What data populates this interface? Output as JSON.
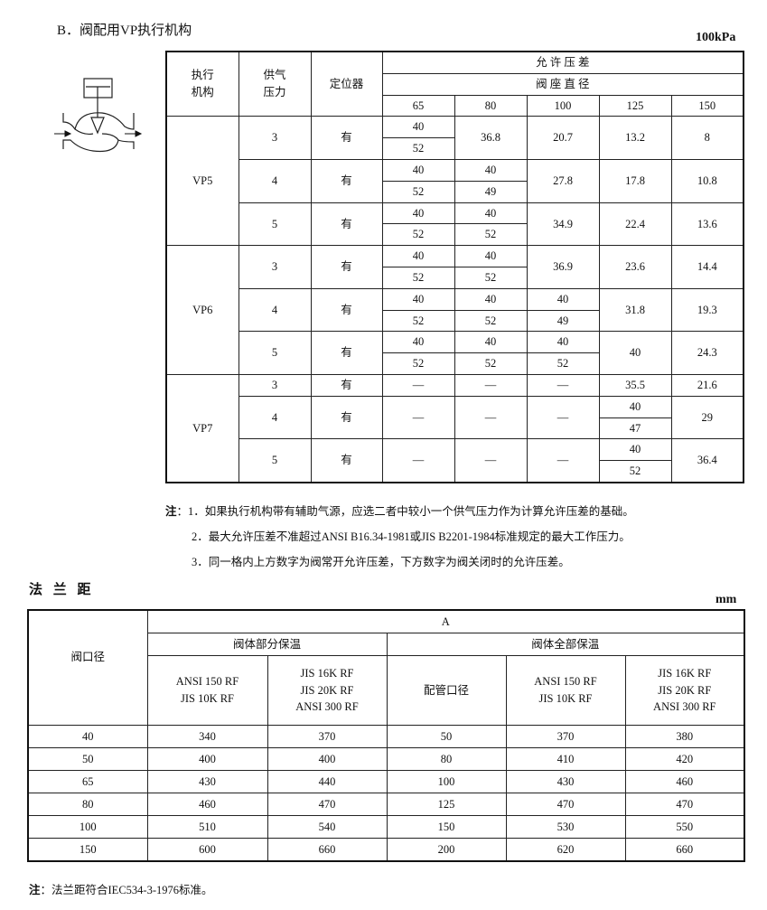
{
  "section_b": {
    "title": "B．阀配用VP执行机构",
    "unit": "100kPa",
    "headers": {
      "actuator": "执行\n机构",
      "actuator_l1": "执行",
      "actuator_l2": "机构",
      "supply_l1": "供气",
      "supply_l2": "压力",
      "positioner": "定位器",
      "allowable": "允 许 压 差",
      "seat": "阀 座 直 径",
      "sizes": [
        "65",
        "80",
        "100",
        "125",
        "150"
      ]
    },
    "rows": {
      "vp5": {
        "name": "VP5",
        "r3": {
          "p": "3",
          "pos": "有",
          "c65": [
            "40",
            "52"
          ],
          "c80": "36.8",
          "c100": "20.7",
          "c125": "13.2",
          "c150": "8"
        },
        "r4": {
          "p": "4",
          "pos": "有",
          "c65": [
            "40",
            "52"
          ],
          "c80": [
            "40",
            "49"
          ],
          "c100": "27.8",
          "c125": "17.8",
          "c150": "10.8"
        },
        "r5": {
          "p": "5",
          "pos": "有",
          "c65": [
            "40",
            "52"
          ],
          "c80": [
            "40",
            "52"
          ],
          "c100": "34.9",
          "c125": "22.4",
          "c150": "13.6"
        }
      },
      "vp6": {
        "name": "VP6",
        "r3": {
          "p": "3",
          "pos": "有",
          "c65": [
            "40",
            "52"
          ],
          "c80": [
            "40",
            "52"
          ],
          "c100": "36.9",
          "c125": "23.6",
          "c150": "14.4"
        },
        "r4": {
          "p": "4",
          "pos": "有",
          "c65": [
            "40",
            "52"
          ],
          "c80": [
            "40",
            "52"
          ],
          "c100": [
            "40",
            "49"
          ],
          "c125": "31.8",
          "c150": "19.3"
        },
        "r5": {
          "p": "5",
          "pos": "有",
          "c65": [
            "40",
            "52"
          ],
          "c80": [
            "40",
            "52"
          ],
          "c100": [
            "40",
            "52"
          ],
          "c125": "40",
          "c150": "24.3"
        }
      },
      "vp7": {
        "name": "VP7",
        "r3": {
          "p": "3",
          "pos": "有",
          "c65": "—",
          "c80": "—",
          "c100": "—",
          "c125": "35.5",
          "c150": "21.6"
        },
        "r4": {
          "p": "4",
          "pos": "有",
          "c65": "—",
          "c80": "—",
          "c100": "—",
          "c125": [
            "40",
            "47"
          ],
          "c150": "29"
        },
        "r5": {
          "p": "5",
          "pos": "有",
          "c65": "—",
          "c80": "—",
          "c100": "—",
          "c125": [
            "40",
            "52"
          ],
          "c150": "36.4"
        }
      }
    },
    "notes": {
      "label": "注",
      "n1": "：1．如果执行机构带有辅助气源，应选二者中较小一个供气压力作为计算允许压差的基础。",
      "n2": "2．最大允许压差不准超过ANSI B16.34-1981或JIS B2201-1984标准规定的最大工作压力。",
      "n3": "3．同一格内上方数字为阀常开允许压差，下方数字为阀关闭时的允许压差。"
    }
  },
  "flange": {
    "title": "法 兰 距",
    "unit": "mm",
    "headers": {
      "valve_size": "阀口径",
      "a": "A",
      "partial": "阀体部分保温",
      "full": "阀体全部保温",
      "ansi150_l1": "ANSI 150 RF",
      "ansi150_l2": "JIS 10K  RF",
      "jis16_l1": "JIS 16K RF",
      "jis16_l2": "JIS 20K RF",
      "jis16_l3": "ANSI 300 RF",
      "pipe": "配管口径"
    },
    "rows": [
      [
        "40",
        "340",
        "370",
        "50",
        "370",
        "380"
      ],
      [
        "50",
        "400",
        "400",
        "80",
        "410",
        "420"
      ],
      [
        "65",
        "430",
        "440",
        "100",
        "430",
        "460"
      ],
      [
        "80",
        "460",
        "470",
        "125",
        "470",
        "470"
      ],
      [
        "100",
        "510",
        "540",
        "150",
        "530",
        "550"
      ],
      [
        "150",
        "600",
        "660",
        "200",
        "620",
        "660"
      ]
    ],
    "note_label": "注",
    "note": "：法兰距符合IEC534-3-1976标准。"
  }
}
